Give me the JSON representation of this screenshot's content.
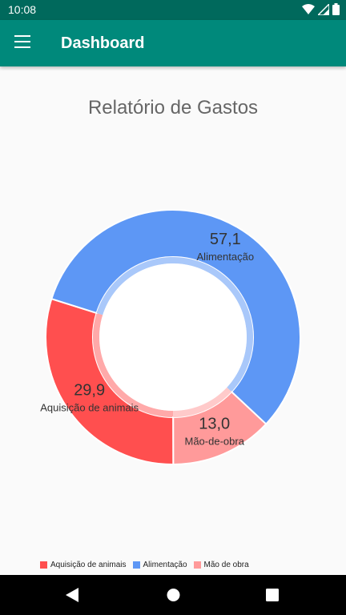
{
  "status_bar": {
    "time": "10:08"
  },
  "app_bar": {
    "title": "Dashboard",
    "menu_icon": "hamburger-menu-icon"
  },
  "chart_title": "Relatório de Gastos",
  "chart_data": {
    "type": "pie",
    "title": "Relatório de Gastos",
    "donut": true,
    "categories": [
      "Aquisição de animais",
      "Alimentação",
      "Mão de obra"
    ],
    "slice_labels": [
      "Aquisição de animais",
      "Alimentação",
      "Mão-de-obra"
    ],
    "values": [
      29.9,
      57.1,
      13.0
    ],
    "value_labels": [
      "29,9",
      "57,1",
      "13,0"
    ],
    "colors": [
      "#ff4f4f",
      "#5d97f5",
      "#ff9a9a"
    ],
    "legend": "bottom-left"
  },
  "nav_bar": {
    "back_icon": "back-triangle-icon",
    "home_icon": "home-circle-icon",
    "recents_icon": "recents-square-icon"
  }
}
